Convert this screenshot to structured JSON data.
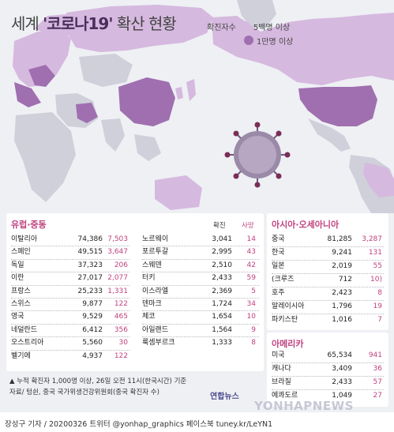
{
  "title": {
    "prefix": "세계 ",
    "highlight": "'코로나19'",
    "suffix": " 확산 현황"
  },
  "legend": {
    "heading": "확진자수",
    "items": [
      {
        "label": "5백명 이상",
        "color": "#d6b9df"
      },
      {
        "label": "1만명 이상",
        "color": "#a06fb0"
      }
    ]
  },
  "colors": {
    "accent": "#c0417f",
    "dark": "#4a2f5c",
    "land": "#cfd0da",
    "tier1": "#d6b9df",
    "tier2": "#a06fb0"
  },
  "europe": {
    "title": "유럽·중동",
    "header_confirmed": "확진",
    "header_deaths": "사망",
    "left": [
      {
        "country": "이탈리아",
        "confirmed": "74,386",
        "deaths": "7,503"
      },
      {
        "country": "스페인",
        "confirmed": "49,515",
        "deaths": "3,647"
      },
      {
        "country": "독일",
        "confirmed": "37,323",
        "deaths": "206"
      },
      {
        "country": "이란",
        "confirmed": "27,017",
        "deaths": "2,077"
      },
      {
        "country": "프랑스",
        "confirmed": "25,233",
        "deaths": "1,331"
      },
      {
        "country": "스위스",
        "confirmed": "9,877",
        "deaths": "122"
      },
      {
        "country": "영국",
        "confirmed": "9,529",
        "deaths": "465"
      },
      {
        "country": "네덜란드",
        "confirmed": "6,412",
        "deaths": "356"
      },
      {
        "country": "오스트리아",
        "confirmed": "5,560",
        "deaths": "30"
      },
      {
        "country": "벨기에",
        "confirmed": "4,937",
        "deaths": "122"
      }
    ],
    "right": [
      {
        "country": "노르웨이",
        "confirmed": "3,041",
        "deaths": "14"
      },
      {
        "country": "포르투갈",
        "confirmed": "2,995",
        "deaths": "43"
      },
      {
        "country": "스웨덴",
        "confirmed": "2,510",
        "deaths": "42"
      },
      {
        "country": "터키",
        "confirmed": "2,433",
        "deaths": "59"
      },
      {
        "country": "이스라엘",
        "confirmed": "2,369",
        "deaths": "5"
      },
      {
        "country": "덴마크",
        "confirmed": "1,724",
        "deaths": "34"
      },
      {
        "country": "체코",
        "confirmed": "1,654",
        "deaths": "10"
      },
      {
        "country": "아일랜드",
        "confirmed": "1,564",
        "deaths": "9"
      },
      {
        "country": "룩셈부르크",
        "confirmed": "1,333",
        "deaths": "8"
      }
    ]
  },
  "asia": {
    "title": "아시아·오세아니아",
    "rows": [
      {
        "country": "중국",
        "confirmed": "81,285",
        "deaths": "3,287"
      },
      {
        "country": "한국",
        "confirmed": "9,241",
        "deaths": "131"
      },
      {
        "country": "일본",
        "confirmed": "2,019",
        "deaths": "55"
      },
      {
        "country": "(크루즈",
        "confirmed": "712",
        "deaths": "10)"
      },
      {
        "country": "호주",
        "confirmed": "2,423",
        "deaths": "8"
      },
      {
        "country": "말레이시아",
        "confirmed": "1,796",
        "deaths": "19"
      },
      {
        "country": "파키스탄",
        "confirmed": "1,016",
        "deaths": "7"
      }
    ]
  },
  "america": {
    "title": "아메리카",
    "rows": [
      {
        "country": "미국",
        "confirmed": "65,534",
        "deaths": "941"
      },
      {
        "country": "캐나다",
        "confirmed": "3,409",
        "deaths": "36"
      },
      {
        "country": "브라질",
        "confirmed": "2,433",
        "deaths": "57"
      },
      {
        "country": "에콰도르",
        "confirmed": "1,049",
        "deaths": "27"
      }
    ]
  },
  "notes": {
    "line1": "▲ 누적 확진자 1,000명 이상, 26일 오전 11시(한국시간) 기준",
    "line2": "자료/ 텅쉰, 중국 국가위생건강위원회(중국 확진자 수)"
  },
  "logo": "연합뉴스",
  "watermark": "YONHAPNEWS",
  "footer": "장성구 기자 / 20200326  트위터 @yonhap_graphics  페이스북 tuney.kr/LeYN1"
}
